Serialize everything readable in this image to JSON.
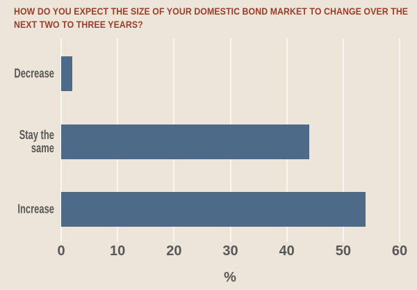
{
  "colors": {
    "background": "#ECE5D8",
    "bar": "#4D6A89",
    "title": "#9E3B2B",
    "text": "#58585A",
    "gridline": "#F8F6F0"
  },
  "chart_data": {
    "type": "bar",
    "orientation": "horizontal",
    "title": "HOW DO YOU EXPECT THE SIZE OF YOUR DOMESTIC BOND MARKET TO CHANGE OVER THE NEXT TWO TO THREE YEARS?",
    "categories": [
      "Decrease",
      "Stay the same",
      "Increase"
    ],
    "values": [
      2,
      44,
      54
    ],
    "xlabel": "%",
    "ylabel": "",
    "xticks": [
      0,
      10,
      20,
      30,
      40,
      50,
      60
    ],
    "xlim": [
      0,
      60
    ],
    "grid": true,
    "legend": "none"
  }
}
